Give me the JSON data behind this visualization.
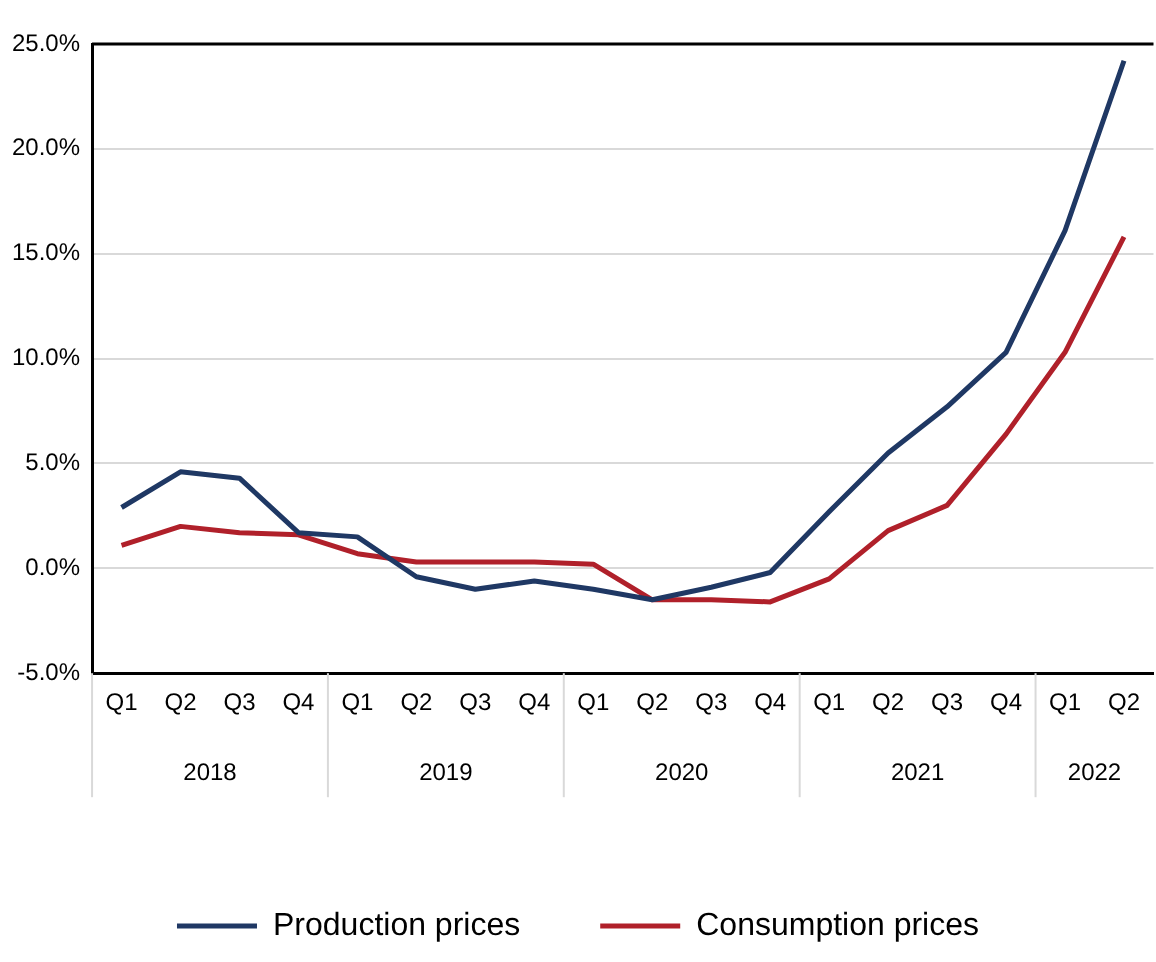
{
  "chart_data": {
    "type": "line",
    "categories": [
      "Q1",
      "Q2",
      "Q3",
      "Q4",
      "Q1",
      "Q2",
      "Q3",
      "Q4",
      "Q1",
      "Q2",
      "Q3",
      "Q4",
      "Q1",
      "Q2",
      "Q3",
      "Q4",
      "Q1",
      "Q2"
    ],
    "annotations": [
      "2018",
      "2019",
      "2020",
      "2021",
      "2022"
    ],
    "series": [
      {
        "name": "Production prices",
        "color": "#1f3864",
        "values": [
          2.9,
          4.6,
          4.3,
          1.7,
          1.5,
          -0.4,
          -1.0,
          -0.6,
          -1.0,
          -1.5,
          -0.9,
          -0.2,
          2.7,
          5.5,
          7.7,
          10.3,
          16.1,
          24.2
        ]
      },
      {
        "name": "Consumption prices",
        "color": "#b0202a",
        "values": [
          1.1,
          2.0,
          1.7,
          1.6,
          0.7,
          0.3,
          0.3,
          0.3,
          0.2,
          -1.5,
          -1.5,
          -1.6,
          -0.5,
          1.8,
          3.0,
          6.4,
          10.3,
          15.8
        ]
      }
    ],
    "ylim": [
      -5,
      25
    ],
    "yticks": [
      {
        "value": -5,
        "label": "-5.0%"
      },
      {
        "value": 0,
        "label": "0.0%"
      },
      {
        "value": 5,
        "label": "5.0%"
      },
      {
        "value": 10,
        "label": "10.0%"
      },
      {
        "value": 15,
        "label": "15.0%"
      },
      {
        "value": 20,
        "label": "20.0%"
      },
      {
        "value": 25,
        "label": "25.0%"
      }
    ],
    "grid": "y",
    "legend": "bottom",
    "marker": "none",
    "line_style": "solid"
  }
}
